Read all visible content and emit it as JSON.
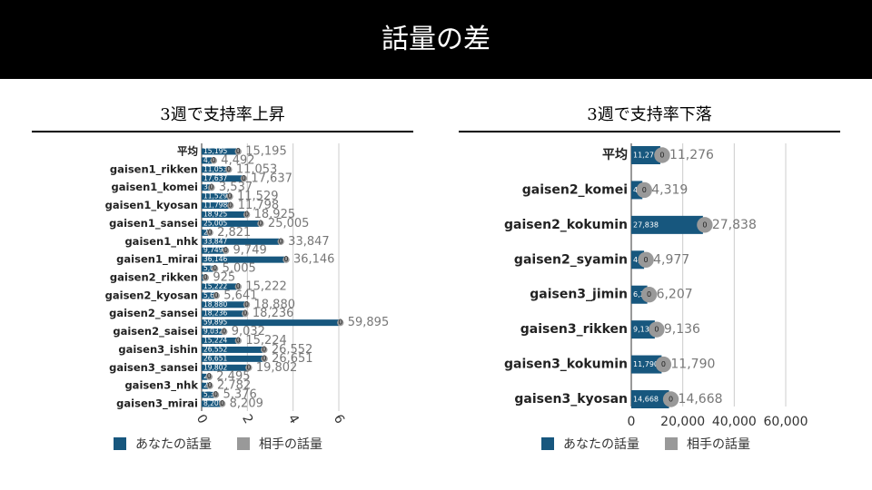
{
  "header": {
    "title": "話量の差"
  },
  "chart_data": [
    {
      "type": "bar",
      "orientation": "horizontal",
      "title": "3週で支持率上昇",
      "categories": [
        "平均",
        null,
        "gaisen1_rikken",
        null,
        "gaisen1_komei",
        null,
        "gaisen1_kyosan",
        null,
        "gaisen1_sansei",
        null,
        "gaisen1_nhk",
        null,
        "gaisen1_mirai",
        null,
        "gaisen2_rikken",
        null,
        "gaisen2_kyosan",
        null,
        "gaisen2_sansei",
        null,
        "gaisen2_saisei",
        null,
        "gaisen3_ishin",
        null,
        "gaisen3_sansei",
        null,
        "gaisen3_nhk",
        null,
        "gaisen3_mirai"
      ],
      "series": [
        {
          "name": "あなたの話量",
          "color": "#17577e",
          "values": [
            15195,
            4492,
            11053,
            17637,
            3537,
            11529,
            11798,
            18925,
            25005,
            2821,
            33847,
            9749,
            36146,
            5005,
            925,
            15222,
            5641,
            18880,
            18236,
            59895,
            9032,
            15224,
            26552,
            26651,
            19802,
            2495,
            2782,
            5376,
            8209
          ],
          "value_labels": [
            "15,195",
            "4,492",
            "11,053",
            "17,637",
            "3,537",
            "11,529",
            "11,798",
            "18,925",
            "25,005",
            "2,821",
            "33,847",
            "9,749",
            "36,146",
            "5,005",
            "925",
            "15,222",
            "5,641",
            "18,880",
            "18,236",
            "59,895",
            "9,032",
            "15,224",
            "26,552",
            "26,651",
            "19,802",
            "2,495",
            "2,782",
            "5,376",
            "8,209"
          ]
        },
        {
          "name": "相手の話量",
          "color": "#999999",
          "values": [
            0,
            0,
            0,
            0,
            0,
            0,
            0,
            0,
            0,
            0,
            0,
            0,
            0,
            0,
            0,
            0,
            0,
            0,
            0,
            0,
            0,
            0,
            0,
            0,
            0,
            0,
            0,
            0,
            0
          ]
        }
      ],
      "xlim": [
        0,
        60000
      ],
      "xticks": [
        0,
        {
          "value": 20000,
          "label": "2"
        },
        {
          "value": 40000,
          "label": "4"
        },
        {
          "value": 60000,
          "label": "6"
        }
      ],
      "grid": true
    },
    {
      "type": "bar",
      "orientation": "horizontal",
      "title": "3週で支持率下落",
      "categories": [
        "平均",
        "gaisen2_komei",
        "gaisen2_kokumin",
        "gaisen2_syamin",
        "gaisen3_jimin",
        "gaisen3_rikken",
        "gaisen3_kokumin",
        "gaisen3_kyosan"
      ],
      "series": [
        {
          "name": "あなたの話量",
          "color": "#17577e",
          "values": [
            11276,
            4319,
            27838,
            4977,
            6207,
            9136,
            11790,
            14668
          ],
          "value_labels": [
            "11,276",
            "4,319",
            "27,838",
            "4,977",
            "6,207",
            "9,136",
            "11,790",
            "14,668"
          ]
        },
        {
          "name": "相手の話量",
          "color": "#999999",
          "values": [
            0,
            0,
            0,
            0,
            0,
            0,
            0,
            0
          ]
        }
      ],
      "xlim": [
        0,
        60000
      ],
      "xticks": [
        0,
        {
          "value": 20000,
          "label": "20,000"
        },
        {
          "value": 40000,
          "label": "40,000"
        },
        {
          "value": 60000,
          "label": "60,000"
        }
      ],
      "grid": true
    }
  ]
}
